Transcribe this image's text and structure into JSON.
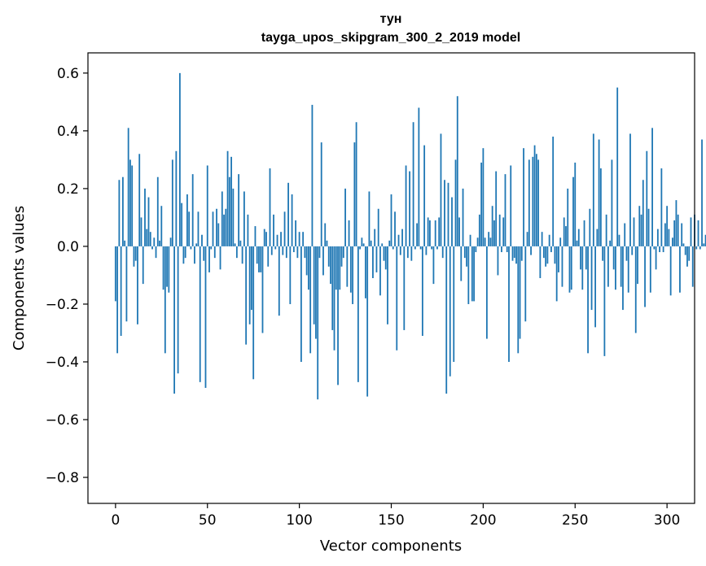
{
  "chart_data": {
    "type": "bar",
    "title": "тун",
    "subtitle": "tayga_upos_skipgram_300_2_2019 model",
    "xlabel": "Vector components",
    "ylabel": "Components values",
    "xlim": [
      -15,
      315
    ],
    "ylim": [
      -0.89,
      0.67
    ],
    "xticks": [
      0,
      50,
      100,
      150,
      200,
      250,
      300
    ],
    "yticks": [
      -0.8,
      -0.6,
      -0.4,
      -0.2,
      0.0,
      0.2,
      0.4,
      0.6
    ],
    "ytick_labels": [
      "−0.8",
      "−0.6",
      "−0.4",
      "−0.2",
      "0.0",
      "0.2",
      "0.4",
      "0.6"
    ],
    "bar_color": "#1f77b4",
    "values": [
      -0.19,
      -0.37,
      0.23,
      -0.31,
      0.24,
      0.02,
      -0.26,
      0.41,
      0.3,
      0.28,
      -0.07,
      -0.05,
      -0.27,
      0.32,
      0.1,
      -0.13,
      0.2,
      0.06,
      0.17,
      0.05,
      -0.01,
      0.03,
      -0.04,
      0.24,
      0.02,
      0.14,
      -0.15,
      -0.37,
      -0.14,
      -0.16,
      0.03,
      0.3,
      -0.51,
      0.33,
      -0.44,
      0.6,
      0.15,
      -0.06,
      -0.04,
      0.18,
      0.12,
      -0.01,
      0.25,
      -0.06,
      0.01,
      0.12,
      -0.47,
      0.04,
      -0.05,
      -0.49,
      0.28,
      -0.09,
      -0.01,
      0.12,
      -0.04,
      0.13,
      0.08,
      -0.08,
      0.19,
      0.11,
      0.13,
      0.33,
      0.24,
      0.31,
      0.2,
      0.01,
      -0.04,
      0.25,
      0.02,
      -0.06,
      0.19,
      -0.34,
      0.11,
      -0.27,
      -0.22,
      -0.46,
      0.07,
      -0.06,
      -0.09,
      -0.09,
      -0.3,
      0.06,
      0.05,
      -0.07,
      0.27,
      -0.03,
      0.11,
      -0.01,
      0.04,
      -0.24,
      0.05,
      -0.03,
      0.12,
      -0.04,
      0.22,
      -0.2,
      0.18,
      -0.02,
      0.09,
      -0.04,
      0.05,
      -0.4,
      0.05,
      -0.04,
      -0.1,
      -0.15,
      -0.37,
      0.49,
      -0.27,
      -0.32,
      -0.53,
      -0.04,
      0.36,
      -0.1,
      0.08,
      0.02,
      -0.07,
      -0.13,
      -0.29,
      -0.36,
      -0.15,
      -0.48,
      -0.15,
      -0.07,
      -0.04,
      0.2,
      -0.14,
      0.09,
      -0.16,
      -0.2,
      0.36,
      0.43,
      -0.47,
      -0.01,
      0.03,
      0.01,
      -0.18,
      -0.52,
      0.19,
      0.02,
      -0.11,
      0.06,
      -0.09,
      0.13,
      -0.17,
      0.01,
      -0.05,
      -0.08,
      -0.27,
      0.02,
      0.18,
      -0.01,
      0.12,
      -0.36,
      0.04,
      -0.03,
      0.06,
      -0.29,
      0.28,
      -0.04,
      0.26,
      -0.05,
      0.43,
      -0.01,
      0.08,
      0.48,
      -0.01,
      -0.31,
      0.35,
      -0.03,
      0.1,
      0.09,
      -0.01,
      -0.13,
      0.09,
      -0.01,
      0.1,
      0.39,
      -0.04,
      0.23,
      -0.51,
      0.22,
      -0.45,
      0.17,
      -0.4,
      0.3,
      0.52,
      0.1,
      -0.12,
      0.2,
      -0.04,
      -0.07,
      -0.2,
      0.04,
      -0.19,
      -0.19,
      -0.02,
      0.03,
      0.11,
      0.29,
      0.34,
      0.03,
      -0.32,
      0.05,
      0.03,
      0.14,
      0.09,
      0.26,
      -0.1,
      0.11,
      -0.02,
      0.1,
      0.25,
      -0.02,
      -0.4,
      0.28,
      -0.05,
      -0.04,
      -0.06,
      -0.37,
      -0.32,
      -0.05,
      0.34,
      -0.26,
      0.05,
      0.3,
      -0.03,
      0.31,
      0.35,
      0.32,
      0.3,
      -0.11,
      0.05,
      -0.04,
      -0.07,
      -0.06,
      0.04,
      -0.02,
      0.38,
      -0.06,
      -0.19,
      -0.09,
      0.03,
      -0.14,
      0.1,
      0.07,
      0.2,
      -0.16,
      -0.15,
      0.24,
      0.29,
      0.02,
      0.06,
      -0.08,
      -0.15,
      0.09,
      -0.08,
      -0.37,
      0.13,
      -0.22,
      0.39,
      -0.28,
      0.06,
      0.37,
      0.27,
      -0.05,
      -0.38,
      0.11,
      -0.14,
      0.02,
      0.3,
      -0.08,
      -0.15,
      0.55,
      0.04,
      -0.14,
      -0.22,
      0.08,
      -0.05,
      -0.16,
      0.39,
      -0.03,
      0.1,
      -0.3,
      -0.13,
      0.14,
      0.11,
      0.23,
      -0.21,
      0.33,
      0.13,
      -0.16,
      0.41,
      -0.01,
      -0.08,
      0.06,
      -0.02,
      0.27,
      -0.02,
      0.08,
      0.14,
      0.06,
      -0.17,
      0.03,
      0.09,
      0.16,
      0.11,
      -0.16,
      0.08,
      0.01,
      -0.03,
      -0.07,
      -0.05,
      0.1,
      -0.14,
      0.11,
      -0.01,
      0.09,
      -0.01,
      0.37,
      0.01,
      0.04
    ]
  }
}
